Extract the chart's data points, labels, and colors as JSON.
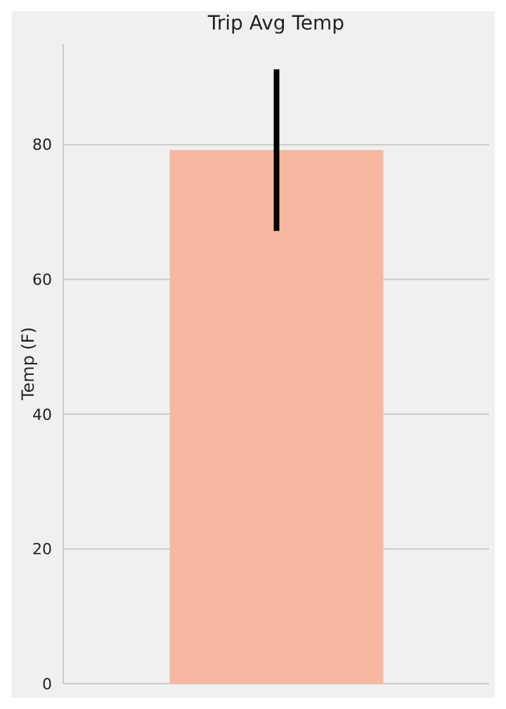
{
  "chart_data": {
    "type": "bar",
    "title": "Trip Avg Temp",
    "ylabel": "Temp (F)",
    "categories": [
      null
    ],
    "values": [
      79.2
    ],
    "errors": [
      12
    ],
    "color": "#f6b8a0",
    "ylim": [
      0,
      95
    ],
    "yticks": [
      0,
      20,
      40,
      60,
      80
    ],
    "grid": "y"
  }
}
